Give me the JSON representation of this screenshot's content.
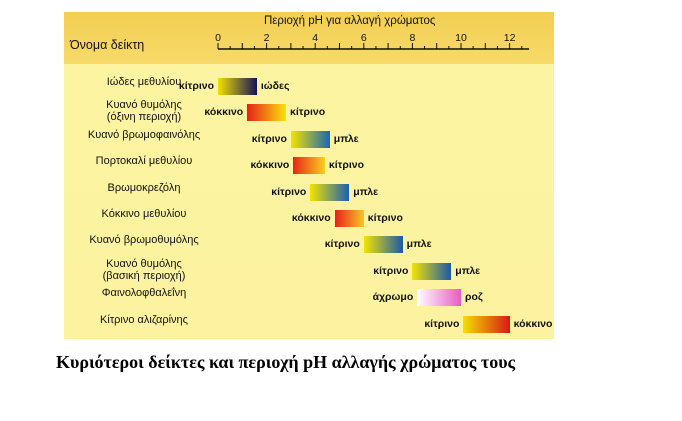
{
  "column_title": "Όνομα δείκτη",
  "scale_title": "Περιοχή pH για αλλαγή χρώματος",
  "axis_ticks": [
    {
      "value": 0,
      "label": "0"
    },
    {
      "value": 2,
      "label": "2"
    },
    {
      "value": 4,
      "label": "4"
    },
    {
      "value": 6,
      "label": "6"
    },
    {
      "value": 8,
      "label": "8"
    },
    {
      "value": 10,
      "label": "10"
    },
    {
      "value": 12,
      "label": "12"
    }
  ],
  "indicators": [
    {
      "name": "Ιώδες μεθυλίου",
      "ph_from": 0.0,
      "ph_to": 1.6,
      "color_from": "#f4e000",
      "color_to": "#14135a",
      "label_from": "κίτρινο",
      "label_to": "ιώδες"
    },
    {
      "name": "Κυανό θυμόλης\n(όξινη περιοχή)",
      "ph_from": 1.2,
      "ph_to": 2.8,
      "color_from": "#e8201a",
      "color_to": "#f8e20a",
      "label_from": "κόκκινο",
      "label_to": "κίτρινο"
    },
    {
      "name": "Κυανό βρωμοφαινόλης",
      "ph_from": 3.0,
      "ph_to": 4.6,
      "color_from": "#f4e400",
      "color_to": "#1a66b4",
      "label_from": "κίτρινο",
      "label_to": "μπλε"
    },
    {
      "name": "Πορτοκαλί μεθυλίου",
      "ph_from": 3.1,
      "ph_to": 4.4,
      "color_from": "#e82418",
      "color_to": "#f8d020",
      "label_from": "κόκκινο",
      "label_to": "κίτρινο"
    },
    {
      "name": "Βρωμοκρεζόλη",
      "ph_from": 3.8,
      "ph_to": 5.4,
      "color_from": "#f4e400",
      "color_to": "#1a60b0",
      "label_from": "κίτρινο",
      "label_to": "μπλε"
    },
    {
      "name": "Κόκκινο μεθυλίου",
      "ph_from": 4.8,
      "ph_to": 6.0,
      "color_from": "#e82018",
      "color_to": "#f6c828",
      "label_from": "κόκκινο",
      "label_to": "κίτρινο"
    },
    {
      "name": "Κυανό βρωμοθυμόλης",
      "ph_from": 6.0,
      "ph_to": 7.6,
      "color_from": "#f4e400",
      "color_to": "#1a5aa8",
      "label_from": "κίτρινο",
      "label_to": "μπλε"
    },
    {
      "name": "Κυανό θυμόλης\n(βασική περιοχή)",
      "ph_from": 8.0,
      "ph_to": 9.6,
      "color_from": "#f4e400",
      "color_to": "#1a5aa8",
      "label_from": "κίτρινο",
      "label_to": "μπλε"
    },
    {
      "name": "Φαινολοφθαλεΐνη",
      "ph_from": 8.2,
      "ph_to": 10.0,
      "color_from": "#ffffff",
      "color_to": "#e85cc4",
      "label_from": "άχρωμο",
      "label_to": "ροζ"
    },
    {
      "name": "Κίτρινο αλιζαρίνης",
      "ph_from": 10.1,
      "ph_to": 12.0,
      "color_from": "#f4e000",
      "color_to": "#d81a14",
      "label_from": "κίτρινο",
      "label_to": "κόκκινο"
    }
  ],
  "caption": "Κυριότεροι δείκτες και περιοχή pH αλλαγής χρώματος τους"
}
